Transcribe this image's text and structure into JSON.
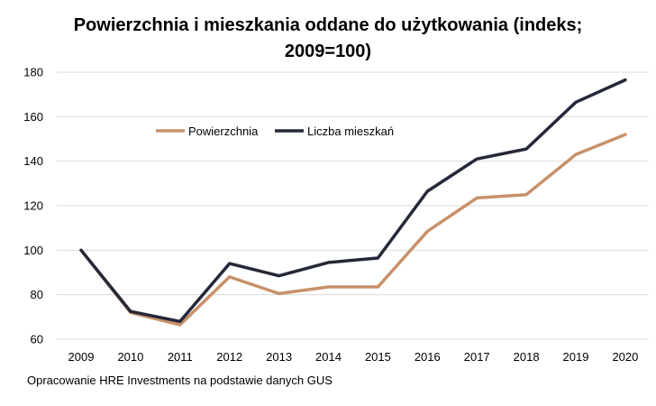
{
  "chart_data": {
    "type": "line",
    "title": "Powierzchnia i mieszkania oddane do użytkowania (indeks; 2009=100)",
    "xlabel": "",
    "ylabel": "",
    "categories": [
      "2009",
      "2010",
      "2011",
      "2012",
      "2013",
      "2014",
      "2015",
      "2016",
      "2017",
      "2018",
      "2019",
      "2020"
    ],
    "ylim": [
      60,
      180
    ],
    "yticks": [
      60,
      80,
      100,
      120,
      140,
      160,
      180
    ],
    "grid": true,
    "legend_position": "top-left",
    "series": [
      {
        "name": "Powierzchnia",
        "color": "#C8916A",
        "values": [
          100,
          72,
          66.5,
          88,
          80.5,
          83.5,
          83.5,
          108.5,
          123.5,
          125,
          143,
          152
        ]
      },
      {
        "name": "Liczba mieszkań",
        "color": "#242838",
        "values": [
          100,
          72.5,
          68,
          94,
          88.5,
          94.5,
          96.5,
          126.5,
          141,
          145.5,
          166.5,
          176.5
        ]
      }
    ]
  },
  "source": "Opracowanie HRE Investments na podstawie danych GUS"
}
